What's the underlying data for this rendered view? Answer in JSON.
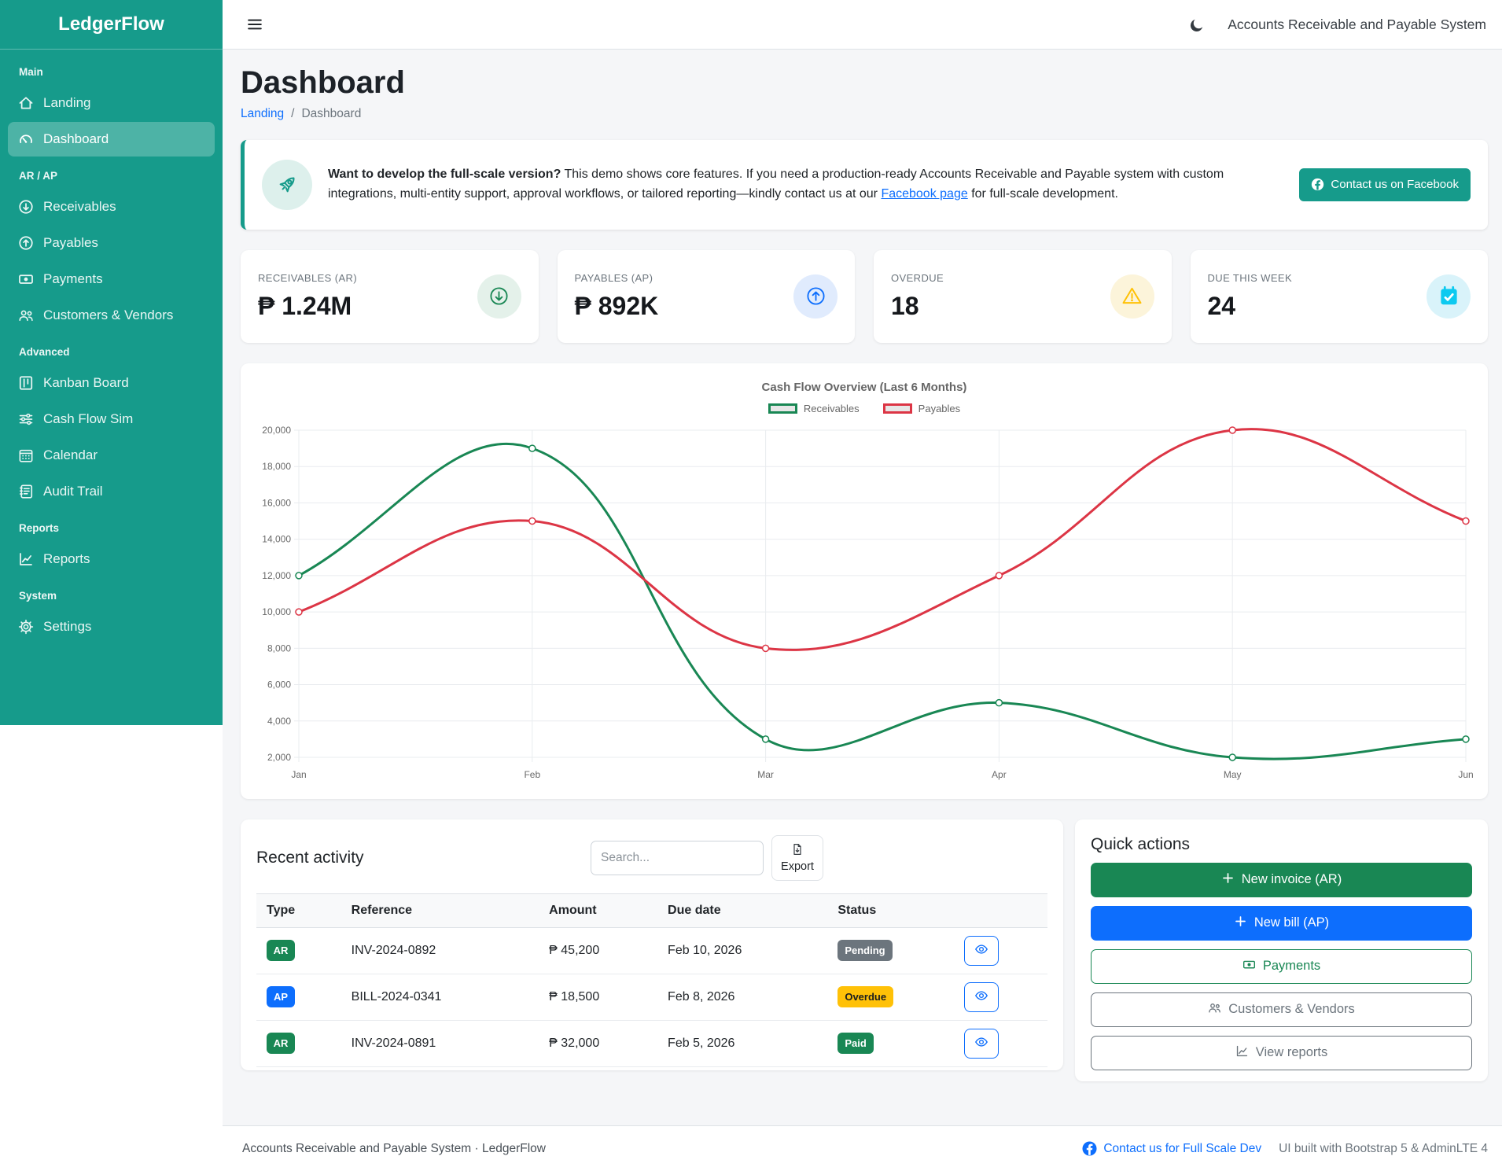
{
  "colors": {
    "brand_teal": "#169b8b",
    "success_green": "#198754",
    "primary_blue": "#0d6efd",
    "warning_yellow": "#ffc107",
    "info_cyan": "#0dcaf0",
    "danger_red": "#dc3545"
  },
  "sidebar": {
    "brand": "LedgerFlow",
    "sections": [
      {
        "label": "Main",
        "items": [
          {
            "label": "Landing",
            "icon": "house-icon"
          },
          {
            "label": "Dashboard",
            "icon": "speedometer-icon",
            "active": true
          }
        ]
      },
      {
        "label": "AR / AP",
        "items": [
          {
            "label": "Receivables",
            "icon": "arrow-down-circle-icon"
          },
          {
            "label": "Payables",
            "icon": "arrow-up-circle-icon"
          },
          {
            "label": "Payments",
            "icon": "cash-icon"
          },
          {
            "label": "Customers & Vendors",
            "icon": "people-icon"
          }
        ]
      },
      {
        "label": "Advanced",
        "items": [
          {
            "label": "Kanban Board",
            "icon": "kanban-icon"
          },
          {
            "label": "Cash Flow Sim",
            "icon": "sliders-icon"
          },
          {
            "label": "Calendar",
            "icon": "calendar-icon"
          },
          {
            "label": "Audit Trail",
            "icon": "journal-icon"
          }
        ]
      },
      {
        "label": "Reports",
        "items": [
          {
            "label": "Reports",
            "icon": "graph-up-icon"
          }
        ]
      },
      {
        "label": "System",
        "items": [
          {
            "label": "Settings",
            "icon": "gear-icon"
          }
        ]
      }
    ]
  },
  "navbar": {
    "title": "Accounts Receivable and Payable System",
    "theme_icon": "moon-icon",
    "menu_icon": "hamburger-icon"
  },
  "page": {
    "title": "Dashboard",
    "breadcrumb": {
      "link": "Landing",
      "separator": "/",
      "current": "Dashboard"
    }
  },
  "callout": {
    "icon": "rocket-icon",
    "lead": "Want to develop the full-scale version?",
    "body_before_link": " This demo shows core features. If you need a production-ready Accounts Receivable and Payable system with custom integrations, multi-entity support, approval workflows, or tailored reporting—kindly contact us at our ",
    "link_text": "Facebook page",
    "body_after_link": " for full-scale development.",
    "button": "Contact us on Facebook"
  },
  "stats": [
    {
      "label": "RECEIVABLES (AR)",
      "value": "₱ 1.24M",
      "icon": "arrow-down-circle-icon"
    },
    {
      "label": "PAYABLES (AP)",
      "value": "₱ 892K",
      "icon": "arrow-up-circle-icon"
    },
    {
      "label": "OVERDUE",
      "value": "18",
      "icon": "warning-triangle-icon"
    },
    {
      "label": "DUE THIS WEEK",
      "value": "24",
      "icon": "calendar-check-icon"
    }
  ],
  "chart_data": {
    "type": "line",
    "title": "Cash Flow Overview (Last 6 Months)",
    "categories": [
      "Jan",
      "Feb",
      "Mar",
      "Apr",
      "May",
      "Jun"
    ],
    "series": [
      {
        "name": "Receivables",
        "color": "#198754",
        "values": [
          12000,
          19000,
          3000,
          5000,
          2000,
          3000
        ]
      },
      {
        "name": "Payables",
        "color": "#dc3545",
        "values": [
          10000,
          15000,
          8000,
          12000,
          20000,
          15000
        ]
      }
    ],
    "ylim": [
      2000,
      20000
    ],
    "ytick_step": 2000,
    "grid": true,
    "legend_position": "top",
    "smooth": true
  },
  "recent": {
    "title": "Recent activity",
    "search_placeholder": "Search...",
    "export_label": "Export",
    "columns": [
      "Type",
      "Reference",
      "Amount",
      "Due date",
      "Status"
    ],
    "rows": [
      {
        "type": "AR",
        "reference": "INV-2024-0892",
        "amount": "₱ 45,200",
        "due": "Feb 10, 2026",
        "status": "Pending"
      },
      {
        "type": "AP",
        "reference": "BILL-2024-0341",
        "amount": "₱ 18,500",
        "due": "Feb 8, 2026",
        "status": "Overdue"
      },
      {
        "type": "AR",
        "reference": "INV-2024-0891",
        "amount": "₱ 32,000",
        "due": "Feb 5, 2026",
        "status": "Paid"
      }
    ]
  },
  "quick": {
    "title": "Quick actions",
    "buttons": [
      {
        "label": "New invoice (AR)",
        "icon": "plus-icon"
      },
      {
        "label": "New bill (AP)",
        "icon": "plus-icon"
      },
      {
        "label": "Payments",
        "icon": "cash-icon"
      },
      {
        "label": "Customers & Vendors",
        "icon": "people-icon"
      },
      {
        "label": "View reports",
        "icon": "graph-up-icon"
      }
    ]
  },
  "footer": {
    "left": "Accounts Receivable and Payable System · LedgerFlow",
    "link": "Contact us for Full Scale Dev",
    "note": "UI built with Bootstrap 5 & AdminLTE 4"
  }
}
